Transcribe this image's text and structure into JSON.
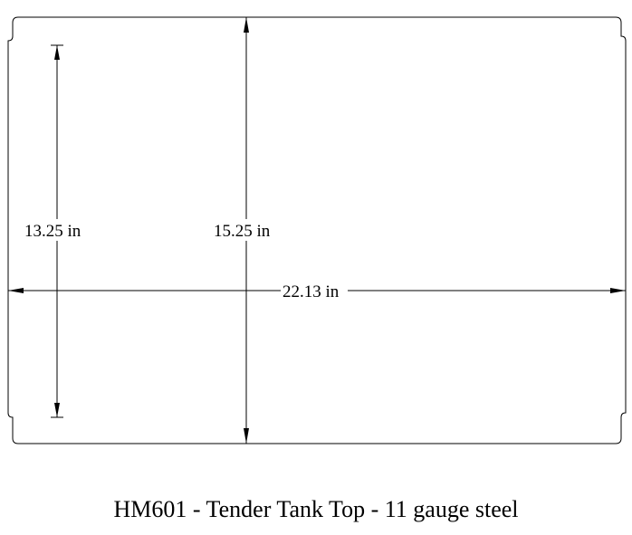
{
  "dimensions": {
    "inner_height": "13.25 in",
    "total_height": "15.25 in",
    "width": "22.13 in"
  },
  "caption": "HM601 - Tender Tank Top - 11 gauge steel",
  "colors": {
    "line": "#000000",
    "background": "#ffffff"
  }
}
